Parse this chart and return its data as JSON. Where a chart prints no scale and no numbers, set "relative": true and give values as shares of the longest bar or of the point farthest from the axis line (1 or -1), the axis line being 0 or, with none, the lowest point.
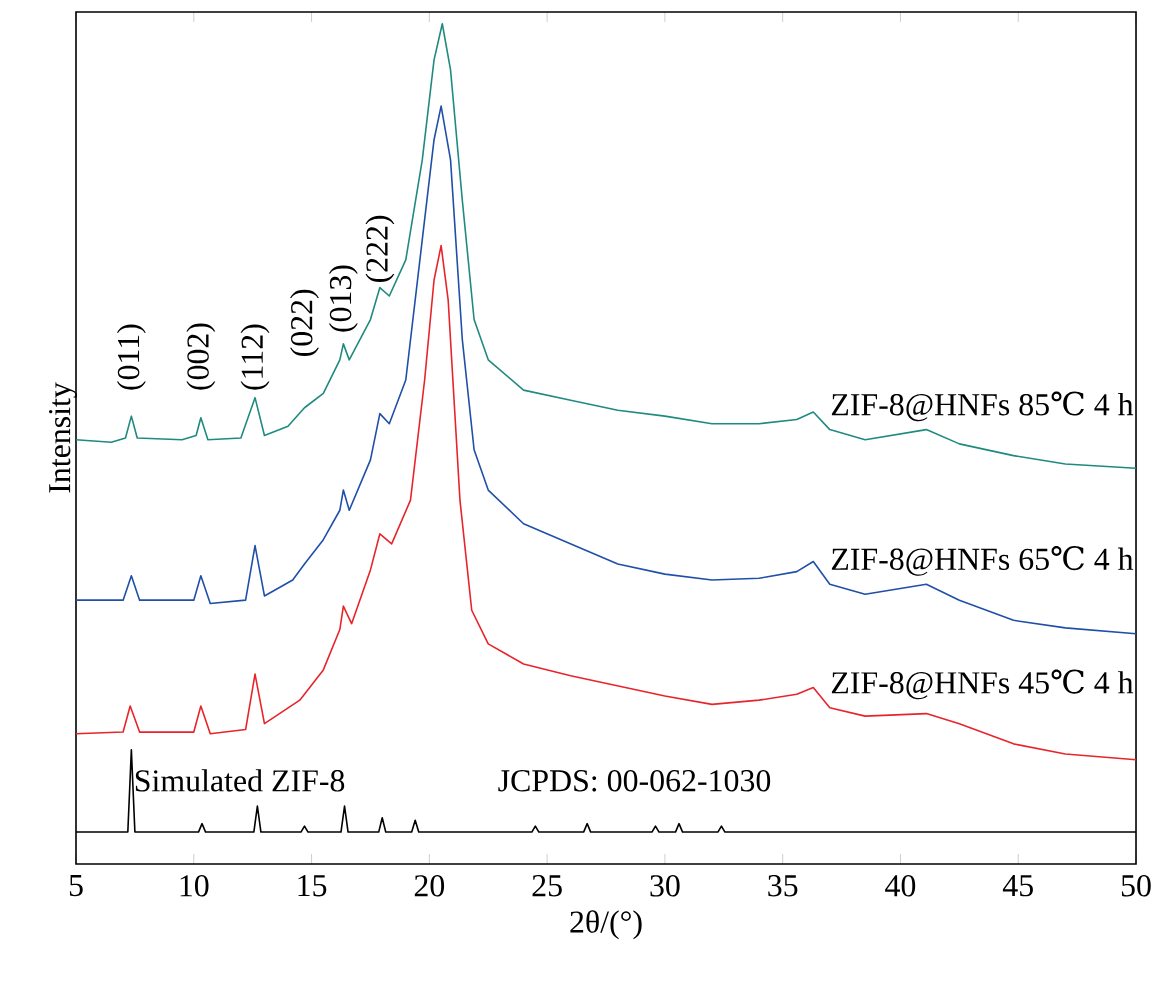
{
  "chart_data": {
    "type": "line",
    "relative": true,
    "xlabel": "2θ/(°)",
    "ylabel": "Intensity",
    "xlim": [
      5,
      50
    ],
    "xticks": [
      5,
      10,
      15,
      20,
      25,
      30,
      35,
      40,
      45,
      50
    ],
    "series": [
      {
        "name": "ZIF-8@HNFs 85℃ 4 h",
        "color": "#1f8a7f",
        "x": [
          5,
          6.5,
          7.1,
          7.35,
          7.6,
          9.5,
          10.1,
          10.3,
          10.6,
          12.0,
          12.6,
          13.0,
          14.0,
          14.7,
          15.5,
          16.2,
          16.35,
          16.6,
          17.5,
          17.9,
          18.3,
          19.0,
          19.7,
          20.2,
          20.55,
          20.9,
          21.4,
          21.9,
          22.5,
          24,
          26,
          28,
          30,
          32,
          34,
          35.6,
          36.3,
          37.0,
          38.5,
          41.1,
          42.5,
          44.8,
          47,
          50
        ],
        "values": [
          0.505,
          0.502,
          0.507,
          0.533,
          0.507,
          0.505,
          0.51,
          0.531,
          0.505,
          0.507,
          0.555,
          0.51,
          0.521,
          0.543,
          0.56,
          0.6,
          0.619,
          0.6,
          0.648,
          0.686,
          0.676,
          0.719,
          0.838,
          0.957,
          1.0,
          0.945,
          0.79,
          0.648,
          0.6,
          0.564,
          0.552,
          0.54,
          0.533,
          0.524,
          0.524,
          0.529,
          0.538,
          0.517,
          0.505,
          0.517,
          0.5,
          0.486,
          0.476,
          0.471
        ]
      },
      {
        "name": "ZIF-8@HNFs 65℃ 4 h",
        "color": "#1f4fa8",
        "x": [
          5,
          7.0,
          7.35,
          7.7,
          10.0,
          10.3,
          10.7,
          12.2,
          12.6,
          13.0,
          14.2,
          14.7,
          15.5,
          16.2,
          16.35,
          16.6,
          17.5,
          17.9,
          18.3,
          19.0,
          19.7,
          20.2,
          20.5,
          20.9,
          21.4,
          21.9,
          22.5,
          24,
          26,
          28,
          30,
          32,
          34,
          35.6,
          36.3,
          37.0,
          38.5,
          41.1,
          42.5,
          44.8,
          47,
          50
        ],
        "values": [
          0.314,
          0.314,
          0.343,
          0.314,
          0.314,
          0.343,
          0.31,
          0.314,
          0.379,
          0.319,
          0.338,
          0.357,
          0.386,
          0.421,
          0.445,
          0.421,
          0.481,
          0.536,
          0.524,
          0.576,
          0.743,
          0.862,
          0.902,
          0.838,
          0.624,
          0.493,
          0.445,
          0.405,
          0.381,
          0.357,
          0.345,
          0.338,
          0.34,
          0.348,
          0.36,
          0.333,
          0.321,
          0.333,
          0.314,
          0.29,
          0.281,
          0.274
        ]
      },
      {
        "name": "ZIF-8@HNFs 45℃ 4 h",
        "color": "#e8242a",
        "x": [
          5,
          7.0,
          7.3,
          7.7,
          10.0,
          10.3,
          10.7,
          12.2,
          12.6,
          13.0,
          14.5,
          15.5,
          16.2,
          16.35,
          16.7,
          17.5,
          17.9,
          18.4,
          19.2,
          19.8,
          20.2,
          20.5,
          20.8,
          21.3,
          21.8,
          22.5,
          24,
          26,
          28,
          30,
          32,
          34,
          35.6,
          36.3,
          37.0,
          38.5,
          41.1,
          42.5,
          44.8,
          47,
          50
        ],
        "values": [
          0.155,
          0.157,
          0.188,
          0.157,
          0.157,
          0.188,
          0.155,
          0.16,
          0.226,
          0.167,
          0.195,
          0.231,
          0.279,
          0.307,
          0.286,
          0.35,
          0.393,
          0.381,
          0.433,
          0.576,
          0.695,
          0.736,
          0.671,
          0.433,
          0.302,
          0.262,
          0.238,
          0.224,
          0.212,
          0.2,
          0.19,
          0.195,
          0.202,
          0.21,
          0.186,
          0.176,
          0.179,
          0.167,
          0.143,
          0.131,
          0.124
        ]
      },
      {
        "name": "Simulated ZIF-8",
        "color": "#000000",
        "x": [
          5,
          7.2,
          7.35,
          7.5,
          10.2,
          10.35,
          10.5,
          12.55,
          12.7,
          12.85,
          14.55,
          14.7,
          14.85,
          16.25,
          16.4,
          16.55,
          17.85,
          18.0,
          18.15,
          19.25,
          19.4,
          19.55,
          24.35,
          24.5,
          24.65,
          26.55,
          26.7,
          26.85,
          29.45,
          29.6,
          29.75,
          30.45,
          30.6,
          30.75,
          32.25,
          32.4,
          32.55,
          50
        ],
        "values": [
          0.038,
          0.038,
          0.136,
          0.038,
          0.038,
          0.048,
          0.038,
          0.038,
          0.069,
          0.038,
          0.038,
          0.045,
          0.038,
          0.038,
          0.069,
          0.038,
          0.038,
          0.055,
          0.038,
          0.038,
          0.052,
          0.038,
          0.038,
          0.045,
          0.038,
          0.038,
          0.048,
          0.038,
          0.038,
          0.045,
          0.038,
          0.038,
          0.048,
          0.038,
          0.038,
          0.045,
          0.038,
          0.038
        ]
      }
    ],
    "annotations": [
      "(011)",
      "(002)",
      "(112)",
      "(022)",
      "(013)",
      "(222)",
      "JCPDS: 00-062-1030"
    ]
  }
}
